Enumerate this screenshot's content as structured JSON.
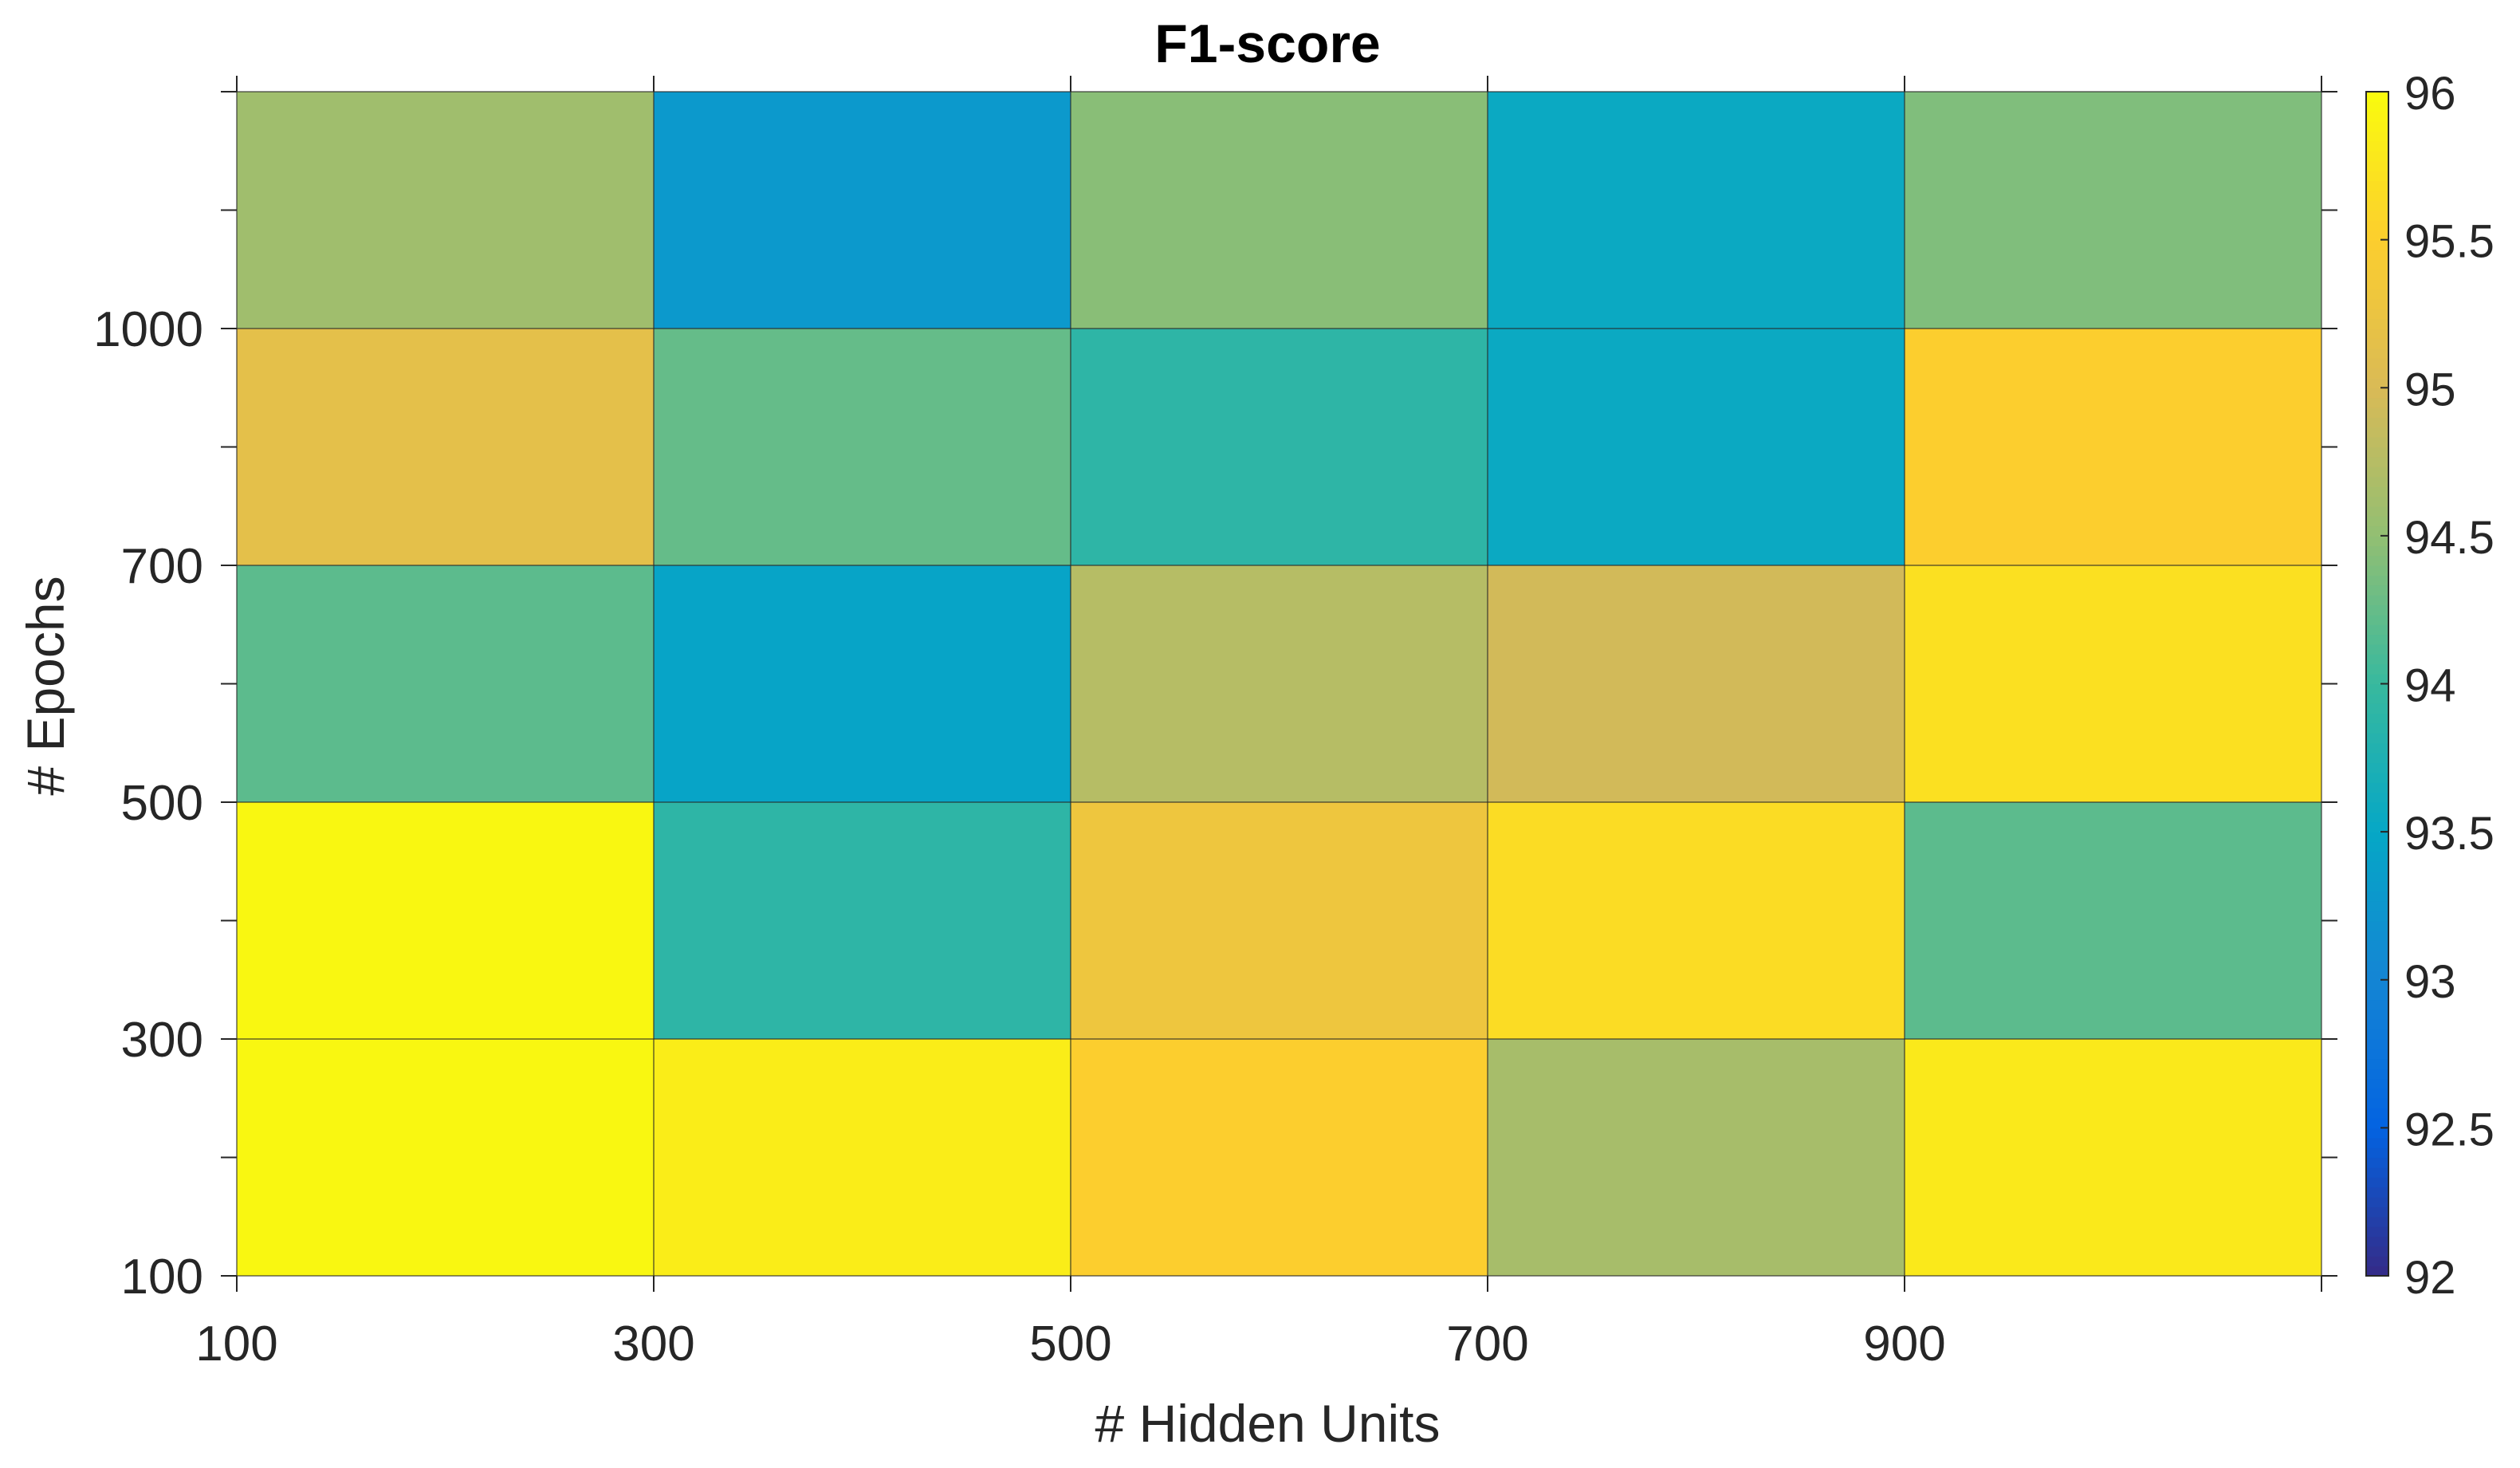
{
  "chart_data": {
    "type": "heatmap",
    "title": "F1-score",
    "xlabel": "# Hidden Units",
    "ylabel": "# Epochs",
    "x_categories": [
      "100",
      "300",
      "500",
      "700",
      "900"
    ],
    "y_categories": [
      "100",
      "300",
      "500",
      "700",
      "1000"
    ],
    "x_tick_labels": [
      "100",
      "300",
      "500",
      "700",
      "900"
    ],
    "y_tick_labels": [
      "100",
      "300",
      "500",
      "700",
      "1000"
    ],
    "values": [
      [
        95.95,
        95.85,
        95.5,
        94.65,
        95.8
      ],
      [
        95.95,
        93.9,
        95.3,
        95.65,
        94.2
      ],
      [
        94.2,
        93.45,
        94.75,
        94.95,
        95.7
      ],
      [
        95.15,
        94.25,
        93.9,
        93.55,
        95.5
      ],
      [
        94.6,
        93.3,
        94.45,
        93.55,
        94.4
      ]
    ],
    "colorbar": {
      "min": 92,
      "max": 96,
      "ticks": [
        "92",
        "92.5",
        "93",
        "93.5",
        "94",
        "94.5",
        "95",
        "95.5",
        "96"
      ]
    },
    "colormap": "parula",
    "grid": true
  }
}
